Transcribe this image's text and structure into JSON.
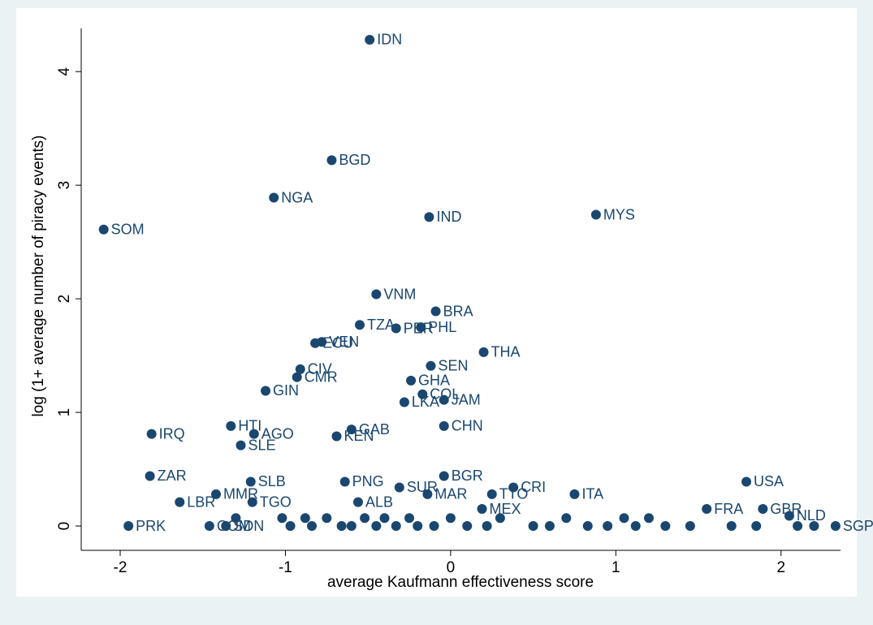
{
  "chart_data": {
    "type": "scatter",
    "x_label": "average Kaufmann effectiveness score",
    "y_label": "log (1+ average number of piracy events)",
    "xlim": [
      -2.236,
      2.36
    ],
    "ylim": [
      -0.214,
      4.38
    ],
    "xticks": [
      -2,
      -1,
      0,
      1,
      2
    ],
    "yticks": [
      0,
      1,
      2,
      3,
      4
    ],
    "series": [
      {
        "color": "#1a476f",
        "labels": [
          "IDN",
          "BGD",
          "NGA",
          "IND",
          "MYS",
          "SOM",
          "VNM",
          "BRA",
          "TZA",
          "PER",
          "PHL",
          "VEN",
          "ECU",
          "THA",
          "SEN",
          "CIV",
          "CMR",
          "GHA",
          "GIN",
          "COL",
          "JAM",
          "LKA",
          "HTI",
          "AGO",
          "IRQ",
          "CHN",
          "GAB",
          "KEN",
          "SLE",
          "ZAR",
          "BGR",
          "USA",
          "SLB",
          "PNG",
          "SUR",
          "CRI",
          "MMR",
          "TTO",
          "ITA",
          "MAR",
          "LBR",
          "TGO",
          "ALB",
          "FRA",
          "GBR",
          "NLD",
          "PRK",
          "COM",
          "SDN",
          "SGP",
          "MEX",
          null,
          null,
          null,
          null,
          null,
          null,
          null,
          null,
          null,
          null,
          null,
          null,
          null,
          null,
          null,
          null,
          null,
          null,
          null,
          null,
          null,
          null,
          null,
          null,
          null,
          null,
          null,
          null,
          null,
          null,
          null,
          null,
          null
        ],
        "x": [
          -0.49,
          -0.72,
          -1.07,
          -0.13,
          0.88,
          -2.1,
          -0.45,
          -0.09,
          -0.55,
          -0.33,
          -0.18,
          -0.78,
          -0.82,
          0.2,
          -0.12,
          -0.91,
          -0.93,
          -0.24,
          -1.12,
          -0.17,
          -0.04,
          -0.28,
          -1.33,
          -1.19,
          -1.81,
          -0.04,
          -0.6,
          -0.69,
          -1.27,
          -1.82,
          -0.04,
          1.79,
          -1.21,
          -0.64,
          -0.31,
          0.38,
          -1.42,
          0.25,
          0.75,
          -0.14,
          -1.64,
          -1.2,
          -0.56,
          1.55,
          1.89,
          2.05,
          -1.95,
          -1.46,
          -1.36,
          2.33,
          0.19,
          -1.3,
          -1.02,
          -0.97,
          -0.88,
          -0.84,
          -0.75,
          -0.66,
          -0.6,
          -0.52,
          -0.45,
          -0.4,
          -0.33,
          -0.25,
          -0.2,
          -0.1,
          0.0,
          0.1,
          0.22,
          0.3,
          0.5,
          0.6,
          0.7,
          0.83,
          0.95,
          1.05,
          1.12,
          1.2,
          1.3,
          1.45,
          1.7,
          1.85,
          2.1,
          2.2
        ],
        "y": [
          4.28,
          3.22,
          2.89,
          2.72,
          2.74,
          2.61,
          2.04,
          1.89,
          1.77,
          1.74,
          1.75,
          1.62,
          1.61,
          1.53,
          1.41,
          1.38,
          1.31,
          1.28,
          1.19,
          1.16,
          1.11,
          1.09,
          0.88,
          0.81,
          0.81,
          0.88,
          0.85,
          0.79,
          0.71,
          0.44,
          0.44,
          0.39,
          0.39,
          0.39,
          0.34,
          0.34,
          0.28,
          0.28,
          0.28,
          0.28,
          0.21,
          0.21,
          0.21,
          0.15,
          0.15,
          0.09,
          0,
          0,
          0,
          0,
          0.15,
          0.07,
          0.07,
          0,
          0.07,
          0,
          0.07,
          0,
          0,
          0.07,
          0,
          0.07,
          0,
          0.07,
          0,
          0,
          0.07,
          0,
          0,
          0.07,
          0,
          0,
          0.07,
          0,
          0,
          0.07,
          0,
          0.07,
          0,
          0,
          0,
          0,
          0,
          0
        ]
      }
    ]
  }
}
